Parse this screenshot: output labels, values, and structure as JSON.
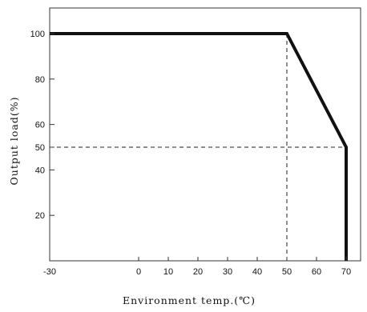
{
  "chart_data": {
    "type": "line",
    "title": "",
    "xlabel": "Environment temp.(℃)",
    "ylabel": "Output load(%)",
    "xlim": [
      -30,
      72
    ],
    "ylim": [
      0,
      111
    ],
    "x_ticks": [
      -30,
      0,
      10,
      20,
      30,
      40,
      50,
      60,
      70
    ],
    "y_ticks": [
      20,
      40,
      50,
      60,
      80,
      100
    ],
    "grid": false,
    "series": [
      {
        "x": [
          -30,
          50,
          70,
          70
        ],
        "y": [
          100,
          100,
          50,
          0
        ]
      }
    ],
    "reference_lines": [
      {
        "orientation": "vertical",
        "x": 50,
        "from_y": 0,
        "to_y": 100
      },
      {
        "orientation": "horizontal",
        "y": 50,
        "from_x": -30,
        "to_x": 70
      }
    ],
    "colors": {
      "line": "#111111",
      "axis": "#333333",
      "dashed": "#222222"
    }
  }
}
